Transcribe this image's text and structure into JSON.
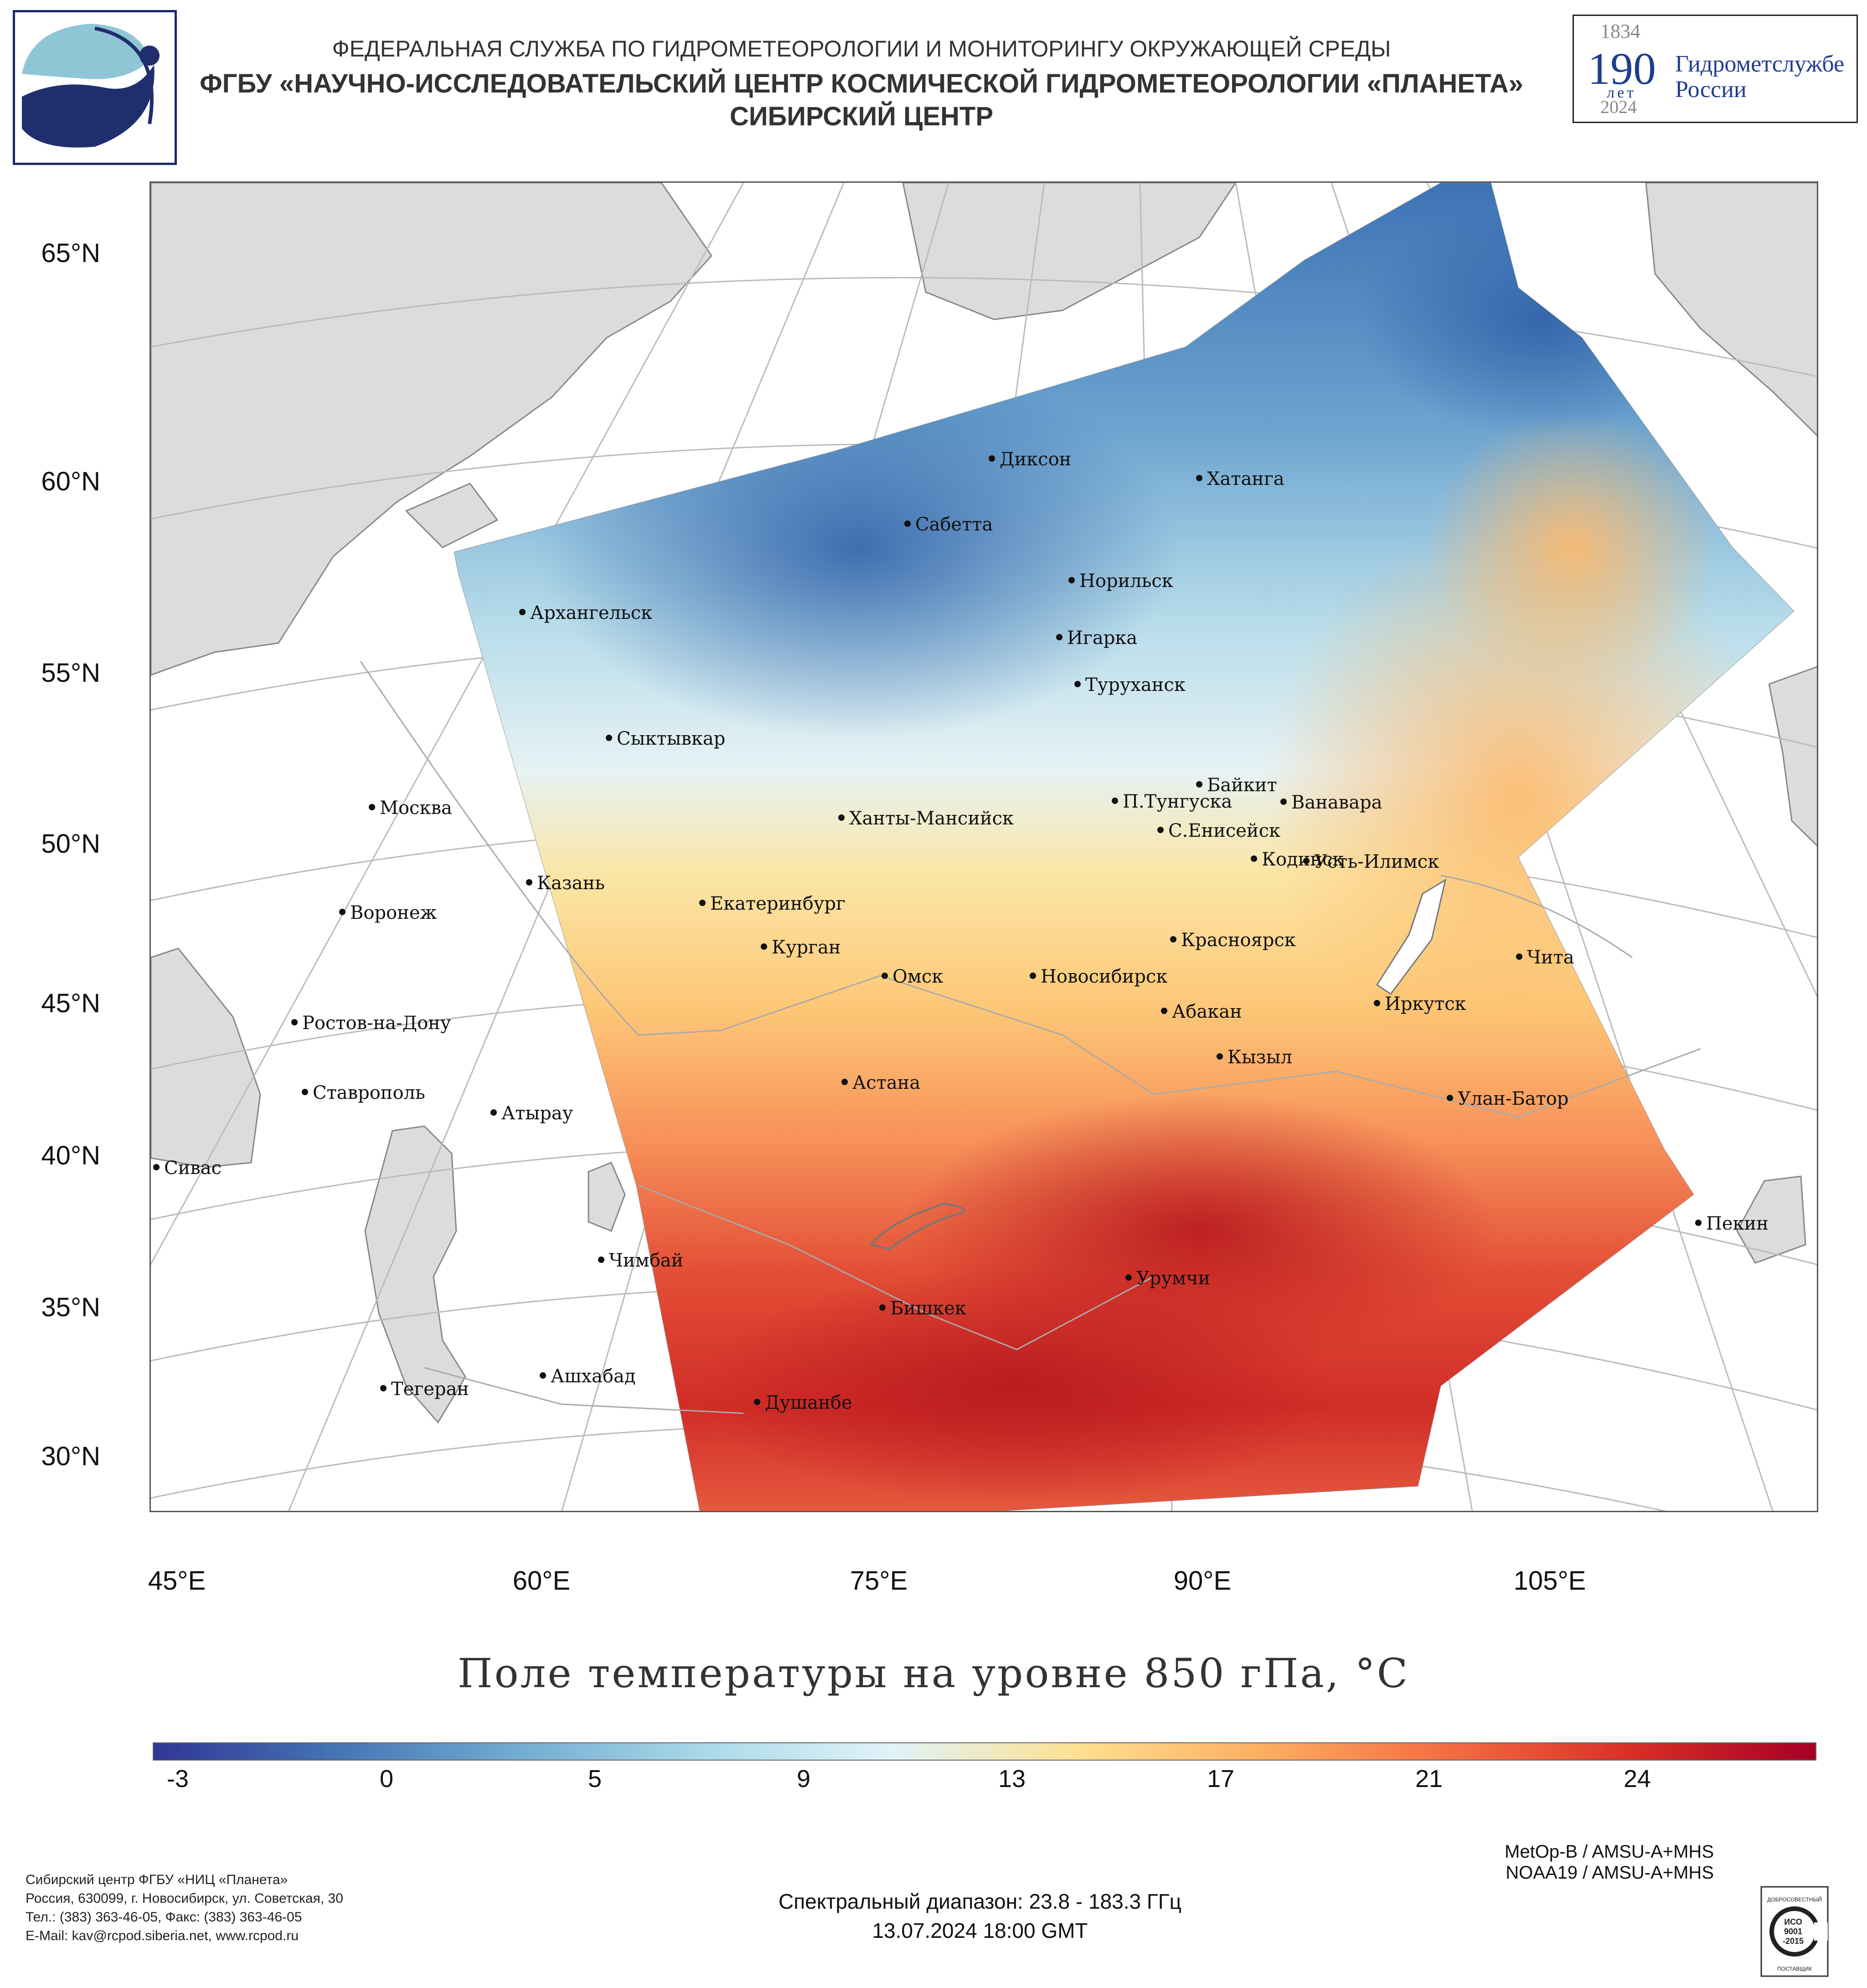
{
  "header": {
    "line1": "ФЕДЕРАЛЬНАЯ СЛУЖБА ПО ГИДРОМЕТЕОРОЛОГИИ И МОНИТОРИНГУ ОКРУЖАЮЩЕЙ СРЕДЫ",
    "line2": "ФГБУ «НАУЧНО-ИССЛЕДОВАТЕЛЬСКИЙ ЦЕНТР КОСМИЧЕСКОЙ ГИДРОМЕТЕОРОЛОГИИ «ПЛАНЕТА»",
    "line3": "СИБИРСКИЙ ЦЕНТР"
  },
  "anniversary_badge": {
    "year_start": "1834",
    "number": "190",
    "years_word": "лет",
    "text_line1": "Гидрометслужбе",
    "text_line2": "России",
    "year_end": "2024"
  },
  "map": {
    "lat_labels": [
      "65°N",
      "60°N",
      "55°N",
      "50°N",
      "45°N",
      "40°N",
      "35°N",
      "30°N"
    ],
    "lon_labels": [
      "45°E",
      "60°E",
      "75°E",
      "90°E",
      "105°E"
    ],
    "cities": [
      {
        "name": "Диксон"
      },
      {
        "name": "Хатанга"
      },
      {
        "name": "Сабетта"
      },
      {
        "name": "Норильск"
      },
      {
        "name": "Архангельск"
      },
      {
        "name": "Игарка"
      },
      {
        "name": "Туруханск"
      },
      {
        "name": "Сыктывкар"
      },
      {
        "name": "Байкит"
      },
      {
        "name": "П.Тунгуска"
      },
      {
        "name": "Ванавара"
      },
      {
        "name": "Москва"
      },
      {
        "name": "Ханты-Мансийск"
      },
      {
        "name": "С.Енисейск"
      },
      {
        "name": "Кодинск"
      },
      {
        "name": "Усть-Илимск"
      },
      {
        "name": "Казань"
      },
      {
        "name": "Екатеринбург"
      },
      {
        "name": "Воронеж"
      },
      {
        "name": "Красноярск"
      },
      {
        "name": "Курган"
      },
      {
        "name": "Чита"
      },
      {
        "name": "Омск"
      },
      {
        "name": "Новосибирск"
      },
      {
        "name": "Иркутск"
      },
      {
        "name": "Абакан"
      },
      {
        "name": "Ростов-на-Дону"
      },
      {
        "name": "Кызыл"
      },
      {
        "name": "Ставрополь"
      },
      {
        "name": "Астана"
      },
      {
        "name": "Улан-Батор"
      },
      {
        "name": "Атырау"
      },
      {
        "name": "Сивас"
      },
      {
        "name": "Пекин"
      },
      {
        "name": "Чимбай"
      },
      {
        "name": "Урумчи"
      },
      {
        "name": "Бишкек"
      },
      {
        "name": "Ашхабад"
      },
      {
        "name": "Тегеран"
      },
      {
        "name": "Душанбе"
      }
    ],
    "colors": {
      "land": "#dcdcdc",
      "grid": "#b8b8b8",
      "frame": "#555555"
    }
  },
  "chart_title": "Поле температуры на уровне 850 гПа, °C",
  "colorbar": {
    "ticks": [
      "-3",
      "0",
      "5",
      "9",
      "13",
      "17",
      "21",
      "24"
    ],
    "stops": [
      "#313695",
      "#4575b4",
      "#74add1",
      "#abd9e9",
      "#e0f3f8",
      "#fee090",
      "#fdae61",
      "#f46d43",
      "#d73027",
      "#a50026"
    ]
  },
  "footer": {
    "satellite1": "MetOp-B / AMSU-A+MHS",
    "satellite2": "NOAA19 / AMSU-A+MHS",
    "spectrum": "Спектральный диапазон: 23.8 - 183.3 ГГц",
    "datetime": "13.07.2024 18:00 GMT",
    "contact1": "Сибирский центр ФГБУ «НИЦ «Планета»",
    "contact2": "Россия, 630099, г. Новосибирск, ул. Советская, 30",
    "contact3": "Тел.: (383) 363-46-05, Факс: (383) 363-46-05",
    "contact4": "E-Mail: kav@rcpod.siberia.net, www.rcpod.ru",
    "iso_top": "ДОБРОСОВЕСТНЫЙ",
    "iso_mid1": "ИСО",
    "iso_mid2": "9001",
    "iso_mid3": "-2015",
    "iso_bottom": "ПОСТАВЩИК"
  }
}
